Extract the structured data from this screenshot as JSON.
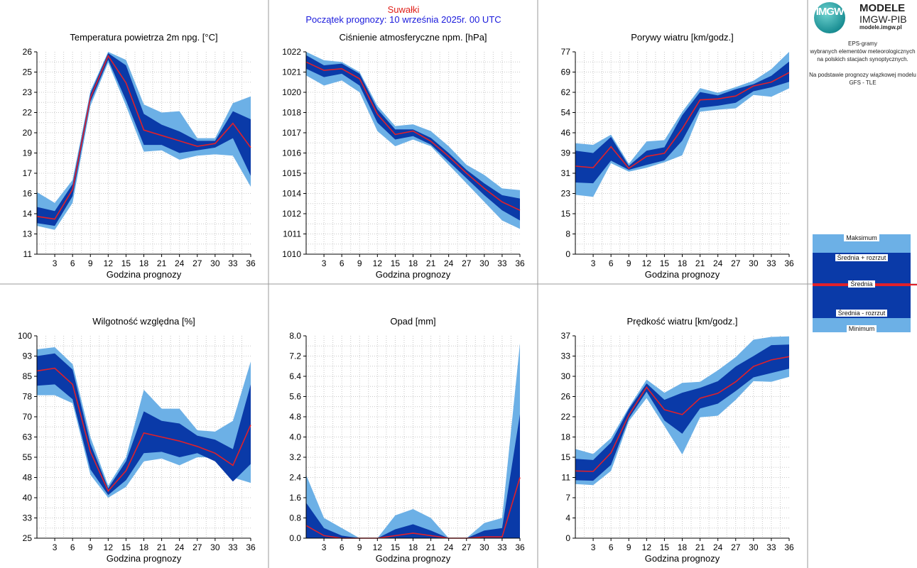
{
  "header": {
    "station": "Suwałki",
    "forecast_start": "Początek prognozy: 10 września 2025r. 00 UTC"
  },
  "logo": {
    "mark": "IMGW",
    "title": "MODELE",
    "org": "IMGW-PIB",
    "url": "modele.imgw.pl"
  },
  "side_notes": {
    "line1": "EPS-gramy",
    "line2": "wybranych elementów meteorologicznych",
    "line3": "na polskich stacjach  synoptycznych.",
    "line4": "Na podstawie prognozy wiązkowej modelu",
    "line5": "GFS - TLE"
  },
  "legend": {
    "max": "Maksimum",
    "mean_plus": "Średnia + rozrzut",
    "mean": "Średnia",
    "mean_minus": "Średnia - rozrzut",
    "min": "Minimum"
  },
  "colors": {
    "minmax_band": "#6cb0e6",
    "spread_band": "#0a3aa8",
    "mean_line": "#e0202a",
    "grid": "#c8c8c8",
    "station_text": "#e0201a",
    "init_text": "#1a1adc"
  },
  "chart_data": [
    {
      "type": "area",
      "title": "Temperatura powietrza 2m npg. [°C]",
      "xlabel": "Godzina prognozy",
      "ylabel": "",
      "x": [
        0,
        3,
        6,
        9,
        12,
        15,
        18,
        21,
        24,
        27,
        30,
        33,
        36
      ],
      "xticks": [
        3,
        6,
        9,
        12,
        15,
        18,
        21,
        24,
        27,
        30,
        33,
        36
      ],
      "yticks": [
        "11",
        "13",
        "14",
        "16",
        "17",
        "19",
        "20",
        "22",
        "23",
        "25",
        "26"
      ],
      "ylim": [
        11,
        26
      ],
      "series": [
        {
          "name": "Maksimum",
          "values": [
            15.6,
            14.8,
            16.5,
            23.1,
            26.0,
            25.4,
            22.1,
            21.5,
            21.6,
            19.6,
            19.6,
            22.2,
            22.7
          ]
        },
        {
          "name": "Średnia + rozrzut",
          "values": [
            14.5,
            14.2,
            16.2,
            22.9,
            25.9,
            25.0,
            21.4,
            20.6,
            20.1,
            19.4,
            19.4,
            21.6,
            21.0
          ]
        },
        {
          "name": "Średnia",
          "values": [
            13.8,
            13.6,
            15.8,
            22.6,
            25.7,
            23.7,
            20.2,
            19.8,
            19.4,
            19.0,
            19.2,
            20.7,
            18.9
          ]
        },
        {
          "name": "Średnia - rozrzut",
          "values": [
            13.3,
            13.1,
            15.3,
            22.3,
            25.4,
            22.4,
            19.1,
            19.1,
            18.5,
            18.7,
            18.9,
            19.6,
            16.8
          ]
        },
        {
          "name": "Minimum",
          "values": [
            13.1,
            12.8,
            14.8,
            22.0,
            25.2,
            22.0,
            18.6,
            18.7,
            18.0,
            18.3,
            18.4,
            18.3,
            16.0
          ]
        }
      ]
    },
    {
      "type": "area",
      "title": "Ciśnienie atmosferyczne npm. [hPa]",
      "xlabel": "Godzina prognozy",
      "ylabel": "",
      "x": [
        0,
        3,
        6,
        9,
        12,
        15,
        18,
        21,
        24,
        27,
        30,
        33,
        36
      ],
      "xticks": [
        3,
        6,
        9,
        12,
        15,
        18,
        21,
        24,
        27,
        30,
        33,
        36
      ],
      "yticks": [
        "1010",
        "1011",
        "1012",
        "1014",
        "1015",
        "1016",
        "1017",
        "1018",
        "1020",
        "1021",
        "1022"
      ],
      "ylim": [
        1010,
        1022
      ],
      "series": [
        {
          "name": "Maksimum",
          "values": [
            1022.0,
            1021.5,
            1021.4,
            1020.8,
            1018.8,
            1017.6,
            1017.7,
            1017.3,
            1016.4,
            1015.3,
            1014.7,
            1013.9,
            1013.8
          ]
        },
        {
          "name": "Średnia + rozrzut",
          "values": [
            1021.8,
            1021.2,
            1021.3,
            1020.7,
            1018.6,
            1017.4,
            1017.4,
            1016.9,
            1016.0,
            1015.0,
            1014.2,
            1013.5,
            1013.3
          ]
        },
        {
          "name": "Średnia",
          "values": [
            1021.4,
            1020.9,
            1021.0,
            1020.4,
            1018.3,
            1017.1,
            1017.3,
            1016.7,
            1015.8,
            1014.8,
            1013.9,
            1013.1,
            1012.6
          ]
        },
        {
          "name": "Średnia - rozrzut",
          "values": [
            1021.0,
            1020.5,
            1020.7,
            1020.0,
            1017.8,
            1016.8,
            1017.0,
            1016.5,
            1015.5,
            1014.5,
            1013.5,
            1012.6,
            1012.0
          ]
        },
        {
          "name": "Minimum",
          "values": [
            1020.6,
            1020.0,
            1020.3,
            1019.6,
            1017.3,
            1016.4,
            1016.8,
            1016.4,
            1015.3,
            1014.2,
            1013.1,
            1012.0,
            1011.5
          ]
        }
      ]
    },
    {
      "type": "area",
      "title": "Porywy wiatru [km/godz.]",
      "xlabel": "Godzina prognozy",
      "ylabel": "",
      "x": [
        0,
        3,
        6,
        9,
        12,
        15,
        18,
        21,
        24,
        27,
        30,
        33,
        36
      ],
      "xticks": [
        3,
        6,
        9,
        12,
        15,
        18,
        21,
        24,
        27,
        30,
        33,
        36
      ],
      "yticks": [
        "0",
        "8",
        "15",
        "23",
        "31",
        "39",
        "46",
        "54",
        "62",
        "69",
        "77"
      ],
      "ylim": [
        0,
        77
      ],
      "series": [
        {
          "name": "Maksimum",
          "values": [
            42.2,
            41.6,
            45.5,
            34.4,
            42.9,
            43.4,
            54.2,
            63.2,
            61.4,
            63.6,
            66.0,
            70.4,
            77.0
          ]
        },
        {
          "name": "Średnia + rozrzut",
          "values": [
            39.4,
            38.5,
            44.6,
            33.6,
            39.4,
            40.7,
            52.9,
            61.7,
            60.4,
            62.8,
            64.7,
            67.9,
            73.3
          ]
        },
        {
          "name": "Średnia",
          "values": [
            33.5,
            32.9,
            40.9,
            32.7,
            37.2,
            38.4,
            47.7,
            58.7,
            59.1,
            60.2,
            64.0,
            65.5,
            69.1
          ]
        },
        {
          "name": "Średnia - rozrzut",
          "values": [
            27.3,
            27.0,
            35.6,
            32.1,
            34.0,
            35.7,
            43.2,
            55.7,
            56.5,
            57.6,
            62.0,
            63.5,
            65.6
          ]
        },
        {
          "name": "Minimum",
          "values": [
            22.6,
            21.8,
            34.6,
            31.4,
            32.9,
            35.0,
            37.6,
            54.2,
            55.0,
            55.5,
            60.6,
            59.9,
            63.1
          ]
        }
      ]
    },
    {
      "type": "area",
      "title": "Wilgotność względna [%]",
      "xlabel": "Godzina prognozy",
      "ylabel": "",
      "x": [
        0,
        3,
        6,
        9,
        12,
        15,
        18,
        21,
        24,
        27,
        30,
        33,
        36
      ],
      "xticks": [
        3,
        6,
        9,
        12,
        15,
        18,
        21,
        24,
        27,
        30,
        33,
        36
      ],
      "yticks": [
        "25",
        "33",
        "40",
        "48",
        "55",
        "63",
        "70",
        "78",
        "85",
        "93",
        "100"
      ],
      "ylim": [
        25,
        100
      ],
      "series": [
        {
          "name": "Maksimum",
          "values": [
            95.0,
            95.8,
            89.5,
            62.5,
            44.5,
            55.0,
            80.0,
            73.0,
            73.0,
            65.0,
            64.5,
            68.5,
            90.5
          ]
        },
        {
          "name": "Średnia + rozrzut",
          "values": [
            92.5,
            93.5,
            87.5,
            60.0,
            43.5,
            53.5,
            72.0,
            68.5,
            67.5,
            63.0,
            61.5,
            58.0,
            82.0
          ]
        },
        {
          "name": "Średnia",
          "values": [
            87.0,
            88.0,
            82.0,
            57.0,
            42.5,
            50.0,
            64.0,
            62.5,
            61.0,
            59.0,
            56.5,
            52.0,
            67.0
          ]
        },
        {
          "name": "Średnia - rozrzut",
          "values": [
            81.5,
            82.0,
            76.5,
            50.5,
            41.0,
            46.5,
            56.5,
            57.0,
            55.0,
            56.5,
            53.5,
            46.0,
            52.5
          ]
        },
        {
          "name": "Minimum",
          "values": [
            78.0,
            78.0,
            75.0,
            48.5,
            40.0,
            44.0,
            53.5,
            54.5,
            52.0,
            55.0,
            55.0,
            47.5,
            45.5
          ]
        }
      ]
    },
    {
      "type": "area",
      "title": "Opad [mm]",
      "xlabel": "Godzina prognozy",
      "ylabel": "",
      "x": [
        0,
        3,
        6,
        9,
        12,
        15,
        18,
        21,
        24,
        27,
        30,
        33,
        36
      ],
      "xticks": [
        3,
        6,
        9,
        12,
        15,
        18,
        21,
        24,
        27,
        30,
        33,
        36
      ],
      "yticks": [
        "0.0",
        "0.8",
        "1.6",
        "2.4",
        "3.2",
        "4.0",
        "4.8",
        "5.6",
        "6.4",
        "7.2",
        "8.0"
      ],
      "ylim": [
        0,
        8
      ],
      "series": [
        {
          "name": "Maksimum",
          "values": [
            2.5,
            0.8,
            0.4,
            0.0,
            0.0,
            0.9,
            1.15,
            0.8,
            0.0,
            0.0,
            0.6,
            0.8,
            7.7
          ]
        },
        {
          "name": "Średnia + rozrzut",
          "values": [
            1.4,
            0.4,
            0.1,
            0.0,
            0.0,
            0.35,
            0.55,
            0.3,
            0.0,
            0.0,
            0.3,
            0.4,
            4.9
          ]
        },
        {
          "name": "Średnia",
          "values": [
            0.5,
            0.1,
            0.0,
            0.0,
            0.0,
            0.1,
            0.2,
            0.1,
            0.0,
            0.0,
            0.05,
            0.05,
            2.4
          ]
        },
        {
          "name": "Średnia - rozrzut",
          "values": [
            0.0,
            0.0,
            0.0,
            0.0,
            0.0,
            0.0,
            0.0,
            0.0,
            0.0,
            0.0,
            0.0,
            0.0,
            0.0
          ]
        },
        {
          "name": "Minimum",
          "values": [
            0.0,
            0.0,
            0.0,
            0.0,
            0.0,
            0.0,
            0.0,
            0.0,
            0.0,
            0.0,
            0.0,
            0.0,
            0.0
          ]
        }
      ]
    },
    {
      "type": "area",
      "title": "Prędkość wiatru [km/godz.]",
      "xlabel": "Godzina prognozy",
      "ylabel": "",
      "x": [
        0,
        3,
        6,
        9,
        12,
        15,
        18,
        21,
        24,
        27,
        30,
        33,
        36
      ],
      "xticks": [
        3,
        6,
        9,
        12,
        15,
        18,
        21,
        24,
        27,
        30,
        33,
        36
      ],
      "yticks": [
        "0",
        "4",
        "7",
        "11",
        "15",
        "18",
        "22",
        "26",
        "30",
        "33",
        "37"
      ],
      "ylim": [
        0,
        37
      ],
      "series": [
        {
          "name": "Maksimum",
          "values": [
            16.3,
            15.4,
            18.3,
            23.9,
            29.0,
            26.6,
            28.4,
            28.6,
            30.7,
            33.1,
            36.3,
            36.8,
            36.9
          ]
        },
        {
          "name": "Średnia + rozrzut",
          "values": [
            14.5,
            14.3,
            17.5,
            23.6,
            28.3,
            25.3,
            26.6,
            27.5,
            28.7,
            31.4,
            33.3,
            35.3,
            35.4
          ]
        },
        {
          "name": "Średnia",
          "values": [
            12.3,
            12.2,
            15.6,
            22.5,
            27.6,
            23.5,
            22.6,
            25.6,
            26.5,
            28.6,
            31.4,
            32.6,
            33.2
          ]
        },
        {
          "name": "Średnia - rozrzut",
          "values": [
            10.6,
            10.5,
            13.4,
            21.9,
            26.8,
            21.5,
            19.1,
            23.7,
            24.6,
            26.9,
            29.4,
            30.2,
            31.0
          ]
        },
        {
          "name": "Minimum",
          "values": [
            9.9,
            9.7,
            12.3,
            21.4,
            25.6,
            20.5,
            15.3,
            22.1,
            22.4,
            25.3,
            28.7,
            28.6,
            29.5
          ]
        }
      ]
    }
  ]
}
